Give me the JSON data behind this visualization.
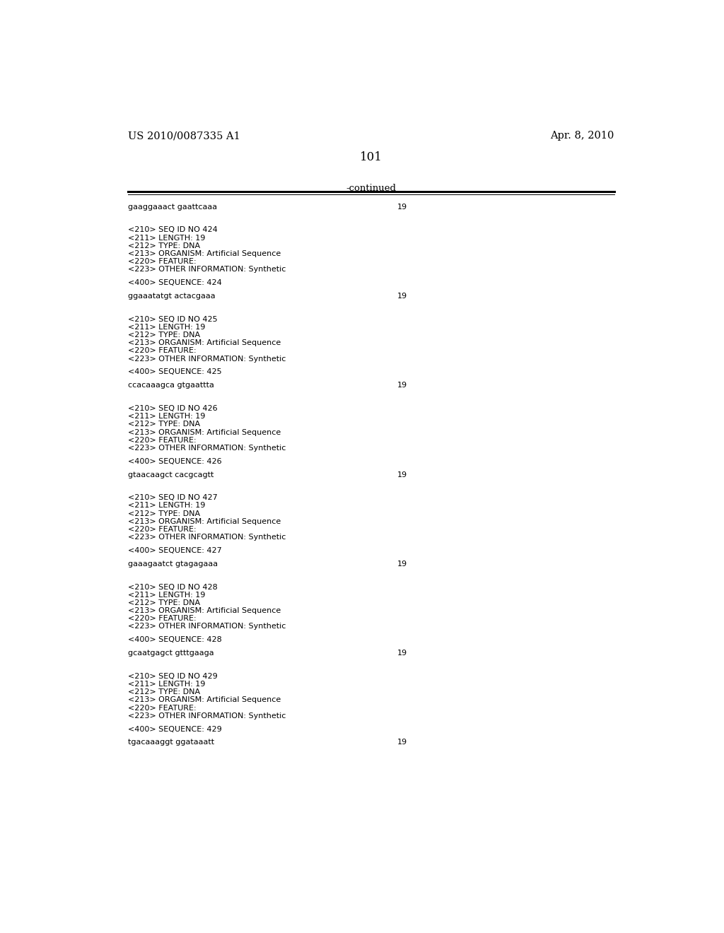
{
  "bg_color": "#ffffff",
  "header_left": "US 2010/0087335 A1",
  "header_right": "Apr. 8, 2010",
  "page_number": "101",
  "continued_label": "-continued",
  "font_color": "#000000",
  "monospace_font": "Courier New",
  "serif_font": "DejaVu Serif",
  "first_sequence": "gaaggaaact gaattcaaa",
  "first_length": "19",
  "entries": [
    {
      "fields": [
        "<210> SEQ ID NO 424",
        "<211> LENGTH: 19",
        "<212> TYPE: DNA",
        "<213> ORGANISM: Artificial Sequence",
        "<220> FEATURE:",
        "<223> OTHER INFORMATION: Synthetic"
      ],
      "seq_label": "<400> SEQUENCE: 424",
      "sequence": "ggaaatatgt actacgaaa",
      "length_val": "19"
    },
    {
      "fields": [
        "<210> SEQ ID NO 425",
        "<211> LENGTH: 19",
        "<212> TYPE: DNA",
        "<213> ORGANISM: Artificial Sequence",
        "<220> FEATURE:",
        "<223> OTHER INFORMATION: Synthetic"
      ],
      "seq_label": "<400> SEQUENCE: 425",
      "sequence": "ccacaaagca gtgaattta",
      "length_val": "19"
    },
    {
      "fields": [
        "<210> SEQ ID NO 426",
        "<211> LENGTH: 19",
        "<212> TYPE: DNA",
        "<213> ORGANISM: Artificial Sequence",
        "<220> FEATURE:",
        "<223> OTHER INFORMATION: Synthetic"
      ],
      "seq_label": "<400> SEQUENCE: 426",
      "sequence": "gtaacaagct cacgcagtt",
      "length_val": "19"
    },
    {
      "fields": [
        "<210> SEQ ID NO 427",
        "<211> LENGTH: 19",
        "<212> TYPE: DNA",
        "<213> ORGANISM: Artificial Sequence",
        "<220> FEATURE:",
        "<223> OTHER INFORMATION: Synthetic"
      ],
      "seq_label": "<400> SEQUENCE: 427",
      "sequence": "gaaagaatct gtagagaaa",
      "length_val": "19"
    },
    {
      "fields": [
        "<210> SEQ ID NO 428",
        "<211> LENGTH: 19",
        "<212> TYPE: DNA",
        "<213> ORGANISM: Artificial Sequence",
        "<220> FEATURE:",
        "<223> OTHER INFORMATION: Synthetic"
      ],
      "seq_label": "<400> SEQUENCE: 428",
      "sequence": "gcaatgagct gtttgaaga",
      "length_val": "19"
    },
    {
      "fields": [
        "<210> SEQ ID NO 429",
        "<211> LENGTH: 19",
        "<212> TYPE: DNA",
        "<213> ORGANISM: Artificial Sequence",
        "<220> FEATURE:",
        "<223> OTHER INFORMATION: Synthetic"
      ],
      "seq_label": "<400> SEQUENCE: 429",
      "sequence": "tgacaaaggt ggataaatt",
      "length_val": "19"
    }
  ]
}
